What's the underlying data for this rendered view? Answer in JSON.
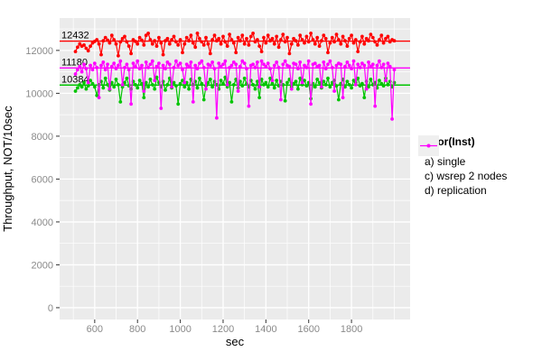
{
  "chart_data": {
    "type": "line",
    "title": "",
    "xlabel": "sec",
    "ylabel": "Throughput, NOT/10sec",
    "x_ticks": [
      600,
      800,
      1000,
      1200,
      1400,
      1600,
      1800
    ],
    "y_ticks": [
      0,
      2000,
      4000,
      6000,
      8000,
      10000,
      12000
    ],
    "x_minor": [
      500,
      700,
      900,
      1100,
      1300,
      1500,
      1700,
      1900,
      2000
    ],
    "y_minor": [
      1000,
      3000,
      5000,
      7000,
      9000,
      11000,
      13000
    ],
    "xlim": [
      436,
      2074
    ],
    "ylim": [
      -550,
      13510
    ],
    "x_start": 510,
    "x_step": 10,
    "grid": true,
    "legend_position": "right",
    "panel_bg": "#EBEBEB",
    "grid_color": "#FFFFFF",
    "axis_text_color": "#8A8A8A",
    "tick_mark_color": "#333333",
    "legend": {
      "title": "factor(Inst)",
      "key_bg": "#EFEFEF"
    },
    "hlines": [
      {
        "value": 12432,
        "label": "12432",
        "color": "#FF0000"
      },
      {
        "value": 11180,
        "label": "11180",
        "color": "#FF00FF"
      },
      {
        "value": 10384,
        "label": "10384",
        "color": "#00C400"
      }
    ],
    "series": [
      {
        "name": "a) single",
        "color": "#FF0000",
        "values": [
          11950,
          12150,
          12300,
          12200,
          12250,
          12100,
          11980,
          12200,
          12350,
          12420,
          12500,
          12300,
          11800,
          12450,
          12600,
          12480,
          12350,
          12700,
          12500,
          12300,
          11750,
          12400,
          12550,
          12650,
          12400,
          12200,
          11850,
          12500,
          12420,
          12300,
          12600,
          12480,
          12250,
          12700,
          12800,
          12500,
          12300,
          12450,
          12200,
          12600,
          12350,
          11800,
          12450,
          12550,
          12300,
          12500,
          12650,
          12400,
          12250,
          12500,
          11900,
          12300,
          12600,
          12450,
          12700,
          12350,
          12150,
          12800,
          12550,
          12400,
          12250,
          12600,
          12300,
          11850,
          12500,
          12700,
          12450,
          12550,
          12300,
          12650,
          12400,
          12200,
          12750,
          12500,
          12350,
          11900,
          12600,
          12450,
          12700,
          12300,
          12550,
          12250,
          12650,
          12800,
          12400,
          12500,
          12200,
          11950,
          12600,
          12350,
          12700,
          12450,
          12550,
          12300,
          12650,
          12150,
          12500,
          12750,
          12400,
          12600,
          11850,
          12300,
          12550,
          12450,
          12250,
          12700,
          12500,
          12350,
          12650,
          12400,
          12800,
          12500,
          12300,
          12600,
          12200,
          12450,
          12700,
          12550,
          11900,
          12350,
          12600,
          12400,
          12750,
          12500,
          12300,
          12650,
          12450,
          12200,
          12550,
          12700,
          12350,
          12500,
          11950,
          12400,
          12650,
          12300,
          12550,
          12450,
          12750,
          12600,
          12400,
          12250,
          12500,
          12700,
          12350,
          12550,
          12650,
          12400,
          12500,
          12450
        ]
      },
      {
        "name": "c) wsrep 2 nodes",
        "color": "#00C400",
        "values": [
          10100,
          10250,
          10400,
          10300,
          10500,
          10200,
          10350,
          10600,
          10450,
          10300,
          9900,
          10400,
          10550,
          10250,
          10700,
          10400,
          10150,
          10500,
          10300,
          10650,
          10400,
          9600,
          10300,
          10500,
          10700,
          10350,
          10200,
          10550,
          10400,
          10250,
          10600,
          10450,
          9800,
          10500,
          10300,
          10650,
          10400,
          10200,
          10750,
          10500,
          10300,
          10550,
          10150,
          10400,
          10700,
          10250,
          10500,
          10350,
          9500,
          10450,
          10600,
          10300,
          10500,
          10200,
          10650,
          10400,
          10550,
          10250,
          10700,
          10450,
          9700,
          10350,
          10500,
          10650,
          10300,
          10550,
          10400,
          10200,
          10600,
          10450,
          10750,
          10300,
          10500,
          9600,
          10400,
          10650,
          10250,
          10550,
          10350,
          10700,
          10450,
          10300,
          10600,
          10400,
          10200,
          10550,
          9800,
          10650,
          10400,
          10500,
          10300,
          10700,
          10450,
          10250,
          10600,
          10350,
          10550,
          10400,
          9650,
          10500,
          10650,
          10300,
          10450,
          10550,
          10200,
          10700,
          10400,
          10600,
          10350,
          10500,
          9750,
          10450,
          10300,
          10650,
          10500,
          10250,
          10550,
          10400,
          10700,
          10300,
          10500,
          10600,
          10350,
          9700,
          10450,
          10650,
          10300,
          10550,
          10400,
          10250,
          10600,
          10500,
          10700,
          10350,
          10450,
          9800,
          10550,
          10300,
          10650,
          10400,
          10500,
          10250,
          10600,
          10450,
          10350,
          10700,
          10400,
          10550,
          10300,
          10500
        ]
      },
      {
        "name": "d) replication",
        "color": "#FF00FF",
        "values": [
          10900,
          11100,
          11250,
          11000,
          11350,
          11150,
          10500,
          11300,
          11100,
          11400,
          11200,
          9800,
          11300,
          11450,
          11100,
          11350,
          10200,
          11250,
          11400,
          11150,
          11300,
          11500,
          10400,
          11200,
          11350,
          11100,
          9500,
          11400,
          11250,
          11500,
          11150,
          11300,
          10100,
          11450,
          11200,
          11350,
          11500,
          10600,
          11250,
          11400,
          9300,
          11300,
          11150,
          11450,
          11350,
          10300,
          11200,
          11500,
          11300,
          11400,
          11100,
          10500,
          11350,
          11250,
          11450,
          9600,
          11300,
          11150,
          11400,
          11500,
          11200,
          10200,
          11350,
          11300,
          11450,
          11150,
          8850,
          11400,
          11250,
          11350,
          11500,
          10400,
          11200,
          11300,
          11450,
          11350,
          10100,
          11250,
          11500,
          11400,
          11150,
          9400,
          11300,
          11350,
          11200,
          11450,
          10300,
          11500,
          11350,
          11250,
          11400,
          11150,
          10600,
          11300,
          11450,
          11200,
          9700,
          11350,
          11500,
          11300,
          11250,
          10200,
          11400,
          11350,
          11150,
          11450,
          10500,
          11300,
          11200,
          11500,
          9500,
          11350,
          11400,
          11250,
          11300,
          10300,
          11450,
          11150,
          11350,
          11500,
          11200,
          10100,
          11300,
          11400,
          11350,
          9800,
          11250,
          11450,
          11300,
          11150,
          11500,
          10400,
          11350,
          11200,
          11400,
          11300,
          10200,
          11450,
          11250,
          11350,
          9400,
          11300,
          11500,
          11200,
          11350,
          10600,
          11400,
          11250,
          8800,
          11100
        ]
      }
    ]
  }
}
